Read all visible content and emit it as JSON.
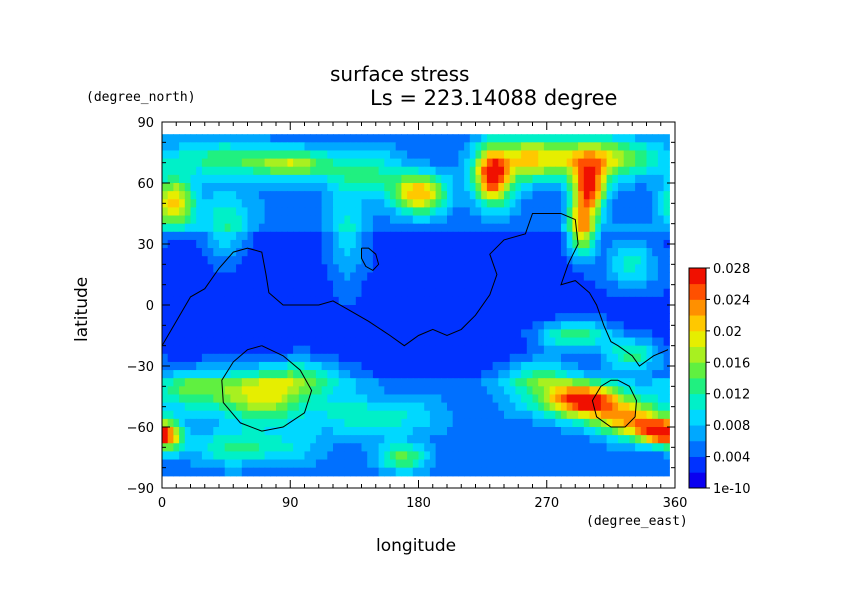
{
  "chart_data": {
    "type": "heatmap",
    "title": "surface stress",
    "subtitle": "Ls = 223.14088 degree",
    "xlabel": "longitude",
    "ylabel": "latitude",
    "x_unit": "(degree_east)",
    "y_unit": "(degree_north)",
    "xlim": [
      0,
      360
    ],
    "ylim": [
      -90,
      90
    ],
    "x_ticks": [
      "0",
      "90",
      "180",
      "270",
      "360"
    ],
    "y_ticks": [
      "90",
      "60",
      "30",
      "0",
      "−30",
      "−60",
      "−90"
    ],
    "colorbar": {
      "min": 0,
      "max": 0.03,
      "labels": [
        "1e-10",
        "0.004",
        "0.008",
        "0.012",
        "0.016",
        "0.02",
        "0.024",
        "0.028"
      ],
      "colors": [
        "#0a00f0",
        "#0032ff",
        "#0070ff",
        "#00a8ff",
        "#00d8ff",
        "#00f0c8",
        "#20f080",
        "#60f040",
        "#a8f020",
        "#e6ee00",
        "#ffc800",
        "#ff9000",
        "#ff5000",
        "#f01000"
      ]
    },
    "hotspots": [
      {
        "lon": 8,
        "lat": 50,
        "amp": 0.017,
        "slon": 10,
        "slat": 9
      },
      {
        "lon": 90,
        "lat": 69,
        "amp": 0.012,
        "slon": 20,
        "slat": 5
      },
      {
        "lon": 40,
        "lat": 72,
        "amp": 0.008,
        "slon": 30,
        "slat": 6
      },
      {
        "lon": 180,
        "lat": 55,
        "amp": 0.018,
        "slon": 14,
        "slat": 7
      },
      {
        "lon": 232,
        "lat": 64,
        "amp": 0.025,
        "slon": 9,
        "slat": 10
      },
      {
        "lon": 255,
        "lat": 72,
        "amp": 0.012,
        "slon": 12,
        "slat": 8
      },
      {
        "lon": 300,
        "lat": 72,
        "amp": 0.017,
        "slon": 28,
        "slat": 7
      },
      {
        "lon": 300,
        "lat": 58,
        "amp": 0.021,
        "slon": 8,
        "slat": 8
      },
      {
        "lon": 295,
        "lat": 38,
        "amp": 0.019,
        "slon": 7,
        "slat": 10
      },
      {
        "lon": 140,
        "lat": 65,
        "amp": 0.008,
        "slon": 18,
        "slat": 8
      },
      {
        "lon": 330,
        "lat": 20,
        "amp": 0.008,
        "slon": 15,
        "slat": 10
      },
      {
        "lon": 70,
        "lat": -45,
        "amp": 0.014,
        "slon": 25,
        "slat": 9
      },
      {
        "lon": 20,
        "lat": -40,
        "amp": 0.009,
        "slon": 20,
        "slat": 7
      },
      {
        "lon": 5,
        "lat": -65,
        "amp": 0.014,
        "slon": 7,
        "slat": 5
      },
      {
        "lon": 60,
        "lat": -70,
        "amp": 0.008,
        "slon": 30,
        "slat": 6
      },
      {
        "lon": 150,
        "lat": -55,
        "amp": 0.007,
        "slon": 30,
        "slat": 7
      },
      {
        "lon": 170,
        "lat": -75,
        "amp": 0.01,
        "slon": 12,
        "slat": 5
      },
      {
        "lon": 295,
        "lat": -47,
        "amp": 0.024,
        "slon": 22,
        "slat": 6
      },
      {
        "lon": 330,
        "lat": -57,
        "amp": 0.018,
        "slon": 18,
        "slat": 6
      },
      {
        "lon": 350,
        "lat": -63,
        "amp": 0.022,
        "slon": 10,
        "slat": 4
      },
      {
        "lon": 290,
        "lat": -15,
        "amp": 0.012,
        "slon": 18,
        "slat": 5
      },
      {
        "lon": 330,
        "lat": -25,
        "amp": 0.01,
        "slon": 15,
        "slat": 6
      },
      {
        "lon": 265,
        "lat": -35,
        "amp": 0.01,
        "slon": 20,
        "slat": 6
      },
      {
        "lon": 100,
        "lat": -35,
        "amp": 0.008,
        "slon": 25,
        "slat": 6
      },
      {
        "lon": 130,
        "lat": 30,
        "amp": 0.007,
        "slon": 10,
        "slat": 15
      },
      {
        "lon": 45,
        "lat": 40,
        "amp": 0.008,
        "slon": 12,
        "slat": 12
      }
    ],
    "contours": [
      [
        [
          0,
          -20
        ],
        [
          10,
          -8
        ],
        [
          20,
          4
        ],
        [
          30,
          8
        ],
        [
          40,
          18
        ],
        [
          50,
          26
        ],
        [
          60,
          28
        ],
        [
          70,
          26
        ],
        [
          73,
          15
        ],
        [
          75,
          6
        ],
        [
          85,
          0
        ],
        [
          100,
          0
        ],
        [
          110,
          0
        ],
        [
          120,
          2
        ],
        [
          130,
          -2
        ],
        [
          145,
          -8
        ],
        [
          160,
          -15
        ],
        [
          170,
          -20
        ],
        [
          180,
          -15
        ],
        [
          190,
          -12
        ],
        [
          200,
          -15
        ],
        [
          210,
          -12
        ],
        [
          220,
          -5
        ],
        [
          230,
          5
        ],
        [
          235,
          15
        ],
        [
          230,
          25
        ],
        [
          240,
          32
        ],
        [
          255,
          35
        ],
        [
          260,
          45
        ],
        [
          280,
          45
        ],
        [
          290,
          42
        ],
        [
          292,
          30
        ],
        [
          285,
          20
        ],
        [
          280,
          10
        ],
        [
          290,
          12
        ],
        [
          300,
          6
        ],
        [
          305,
          0
        ],
        [
          310,
          -10
        ],
        [
          315,
          -18
        ],
        [
          320,
          -20
        ],
        [
          330,
          -25
        ],
        [
          335,
          -30
        ],
        [
          345,
          -25
        ],
        [
          355,
          -22
        ],
        [
          360,
          -20
        ]
      ],
      [
        [
          140,
          28
        ],
        [
          145,
          28
        ],
        [
          150,
          25
        ],
        [
          152,
          20
        ],
        [
          148,
          17
        ],
        [
          143,
          19
        ],
        [
          140,
          23
        ],
        [
          140,
          28
        ]
      ],
      [
        [
          70,
          -20
        ],
        [
          85,
          -25
        ],
        [
          97,
          -32
        ],
        [
          105,
          -42
        ],
        [
          100,
          -53
        ],
        [
          85,
          -60
        ],
        [
          70,
          -62
        ],
        [
          55,
          -58
        ],
        [
          43,
          -48
        ],
        [
          42,
          -37
        ],
        [
          50,
          -28
        ],
        [
          60,
          -22
        ],
        [
          70,
          -20
        ]
      ],
      [
        [
          320,
          -37
        ],
        [
          328,
          -40
        ],
        [
          333,
          -47
        ],
        [
          332,
          -55
        ],
        [
          325,
          -60
        ],
        [
          315,
          -60
        ],
        [
          305,
          -55
        ],
        [
          302,
          -47
        ],
        [
          308,
          -40
        ],
        [
          315,
          -37
        ],
        [
          320,
          -37
        ]
      ]
    ]
  }
}
